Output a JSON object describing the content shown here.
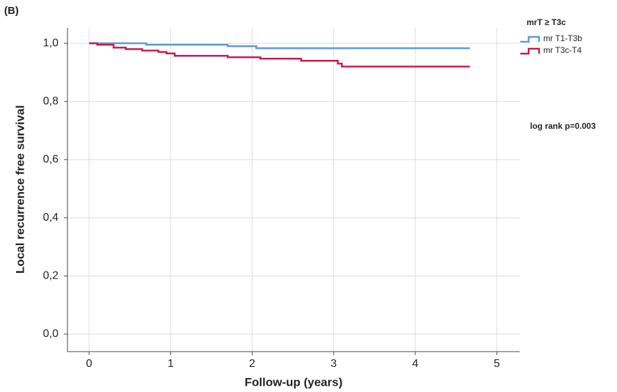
{
  "chart_data": {
    "type": "step",
    "panel_label": "(B)",
    "x_label": "Follow-up (years)",
    "y_label": "Local recurrence free survival",
    "xlim": [
      -0.265,
      5.28
    ],
    "ylim": [
      -0.06,
      1.053
    ],
    "xticks": [
      0,
      1,
      2,
      3,
      4,
      5
    ],
    "yticks": [
      {
        "value": 0,
        "label": "0,0"
      },
      {
        "value": 0.2,
        "label": "0,2"
      },
      {
        "value": 0.4,
        "label": "0,4"
      },
      {
        "value": 0.6,
        "label": "0,6"
      },
      {
        "value": 0.8,
        "label": "0,8"
      },
      {
        "value": 1.0,
        "label": "1,0"
      }
    ],
    "grid": true,
    "legend_title": "mrT  ≥ T3c",
    "annotation": "log rank p=0.003",
    "series": [
      {
        "name": "mr T1-T3b",
        "color": "#5a9ad6",
        "x": [
          0,
          0.7,
          1.7,
          2.05,
          4.67
        ],
        "values": [
          1.0,
          0.995,
          0.99,
          0.983,
          0.983
        ]
      },
      {
        "name": "mr T3c-T4",
        "color": "#c41a4a",
        "x": [
          0,
          0.1,
          0.3,
          0.45,
          0.65,
          0.85,
          0.95,
          1.05,
          1.7,
          2.1,
          2.6,
          3.05,
          3.1,
          4.67
        ],
        "values": [
          1.0,
          0.995,
          0.985,
          0.98,
          0.975,
          0.97,
          0.965,
          0.957,
          0.952,
          0.947,
          0.94,
          0.93,
          0.92,
          0.92
        ]
      }
    ]
  }
}
